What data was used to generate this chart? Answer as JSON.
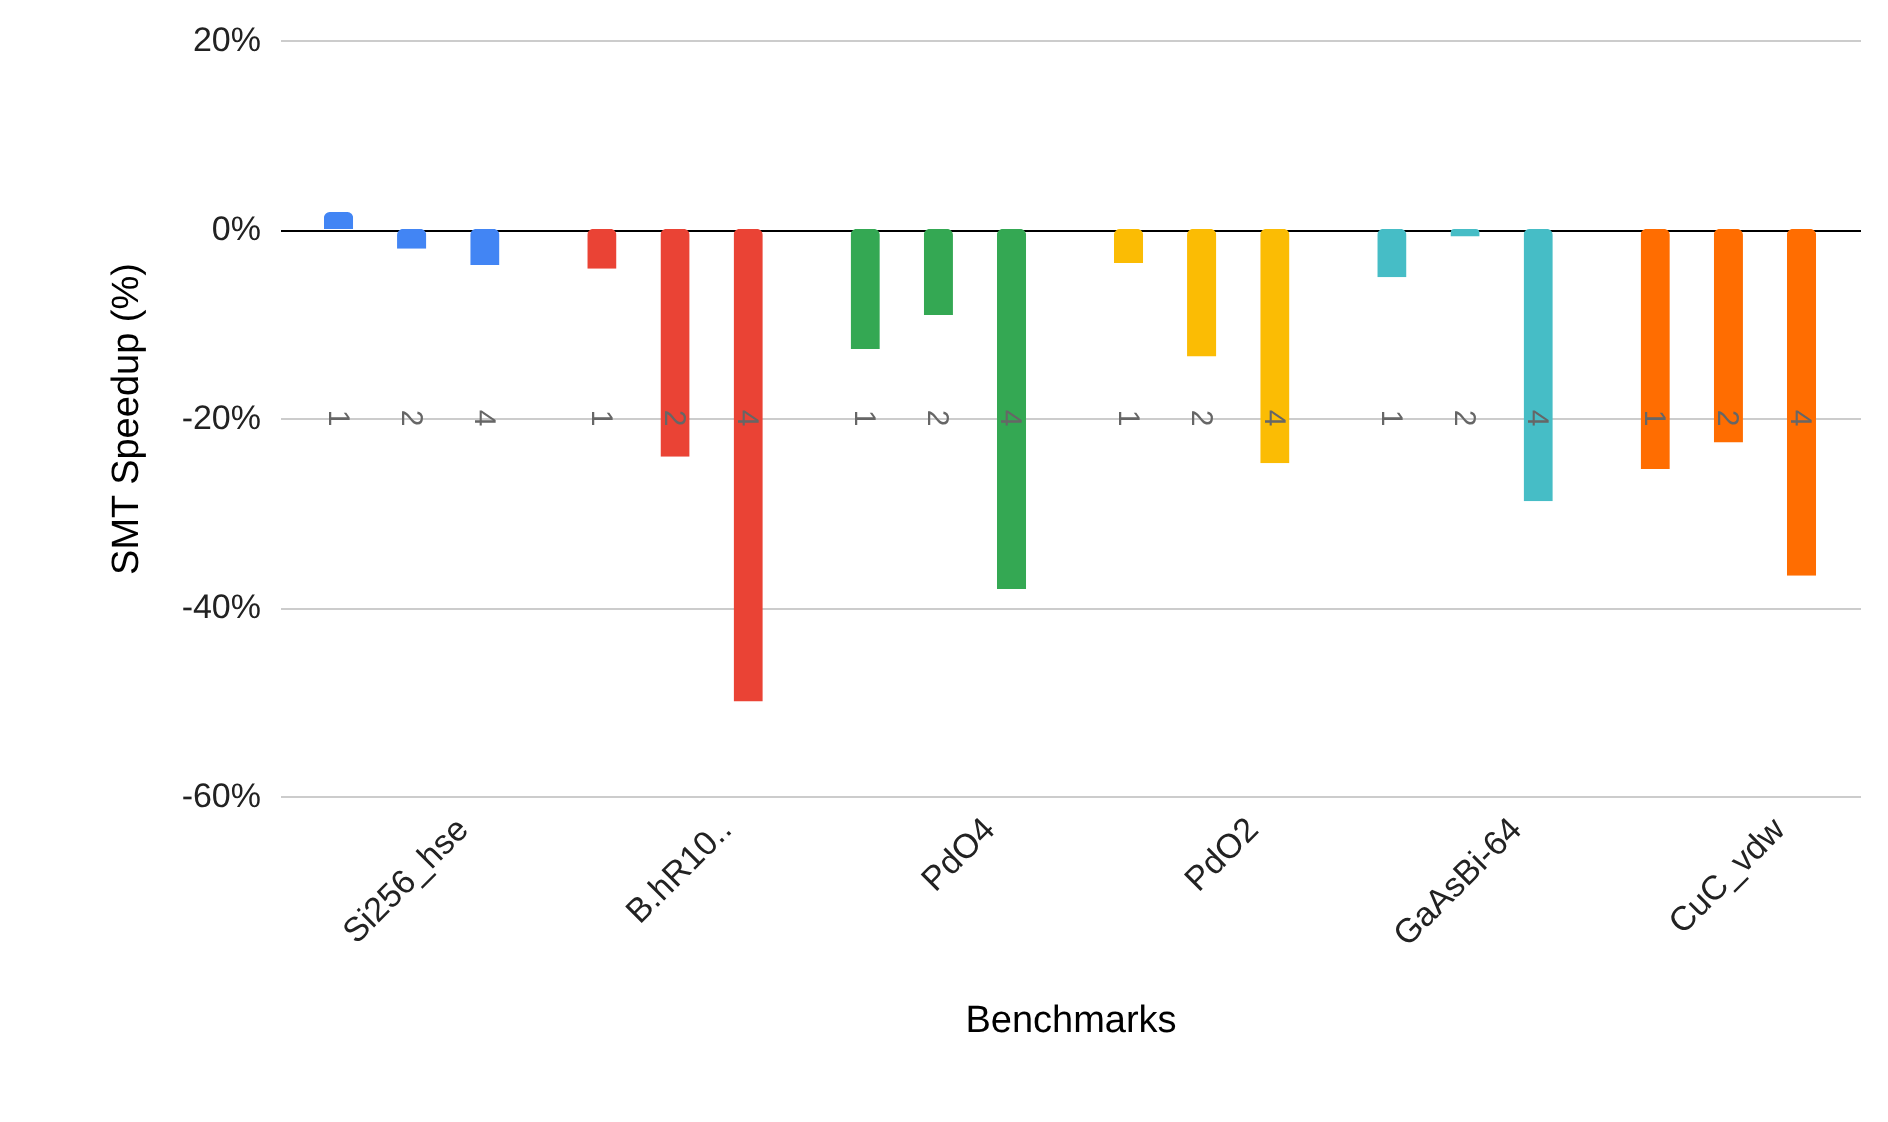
{
  "chart_data": {
    "type": "bar",
    "xlabel": "Benchmarks",
    "ylabel": "SMT Speedup (%)",
    "categories": [
      "Si256_hse",
      "B.hR10..",
      "PdO4",
      "PdO2",
      "GaAsBi-64",
      "CuC_vdw"
    ],
    "series": [
      {
        "name": "1",
        "colors": [
          "#4285f4",
          "#ea4335",
          "#34a853",
          "#fbbc04",
          "#46bdc6",
          "#ff6d01"
        ],
        "values": [
          1.8,
          -4.2,
          -12.7,
          -3.6,
          -5.1,
          -25.4
        ]
      },
      {
        "name": "2",
        "colors": [
          "#4285f4",
          "#ea4335",
          "#34a853",
          "#fbbc04",
          "#46bdc6",
          "#ff6d01"
        ],
        "values": [
          -2.1,
          -24.1,
          -9.1,
          -13.5,
          -0.8,
          -22.6
        ]
      },
      {
        "name": "4",
        "colors": [
          "#4285f4",
          "#ea4335",
          "#34a853",
          "#fbbc04",
          "#46bdc6",
          "#ff6d01"
        ],
        "values": [
          -3.8,
          -50,
          -38.1,
          -24.8,
          -28.8,
          -36.7
        ]
      }
    ],
    "ylim": [
      -60,
      20
    ],
    "yticks": [
      {
        "value": -60,
        "label": "-60%"
      },
      {
        "value": -40,
        "label": "-40%"
      },
      {
        "value": -20,
        "label": "-20%"
      },
      {
        "value": 0,
        "label": "0%"
      },
      {
        "value": 20,
        "label": "20%"
      }
    ],
    "grid": "y"
  }
}
